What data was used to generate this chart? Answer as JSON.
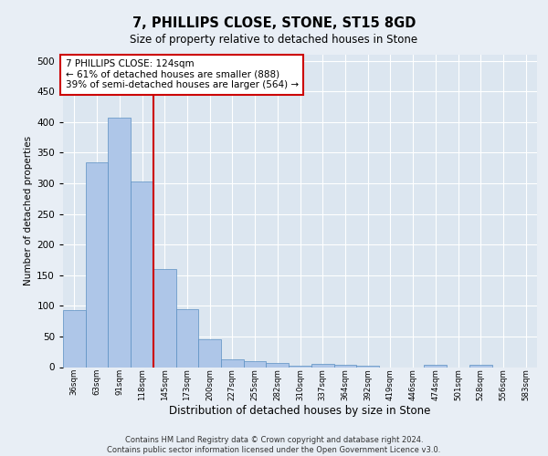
{
  "title1": "7, PHILLIPS CLOSE, STONE, ST15 8GD",
  "title2": "Size of property relative to detached houses in Stone",
  "xlabel": "Distribution of detached houses by size in Stone",
  "ylabel": "Number of detached properties",
  "bins": [
    "36sqm",
    "63sqm",
    "91sqm",
    "118sqm",
    "145sqm",
    "173sqm",
    "200sqm",
    "227sqm",
    "255sqm",
    "282sqm",
    "310sqm",
    "337sqm",
    "364sqm",
    "392sqm",
    "419sqm",
    "446sqm",
    "474sqm",
    "501sqm",
    "528sqm",
    "556sqm",
    "583sqm"
  ],
  "values": [
    93,
    335,
    408,
    303,
    160,
    95,
    45,
    13,
    10,
    6,
    2,
    5,
    4,
    2,
    0,
    0,
    4,
    0,
    3,
    0,
    0
  ],
  "bar_color": "#aec6e8",
  "bar_edge_color": "#5a8fc2",
  "vline_color": "#cc0000",
  "annotation_text": "7 PHILLIPS CLOSE: 124sqm\n← 61% of detached houses are smaller (888)\n39% of semi-detached houses are larger (564) →",
  "annotation_box_color": "#ffffff",
  "annotation_box_edge": "#cc0000",
  "bg_color": "#e8eef5",
  "plot_bg": "#dce6f0",
  "grid_color": "#ffffff",
  "footer": "Contains HM Land Registry data © Crown copyright and database right 2024.\nContains public sector information licensed under the Open Government Licence v3.0.",
  "ylim": [
    0,
    510
  ],
  "yticks": [
    0,
    50,
    100,
    150,
    200,
    250,
    300,
    350,
    400,
    450,
    500
  ]
}
